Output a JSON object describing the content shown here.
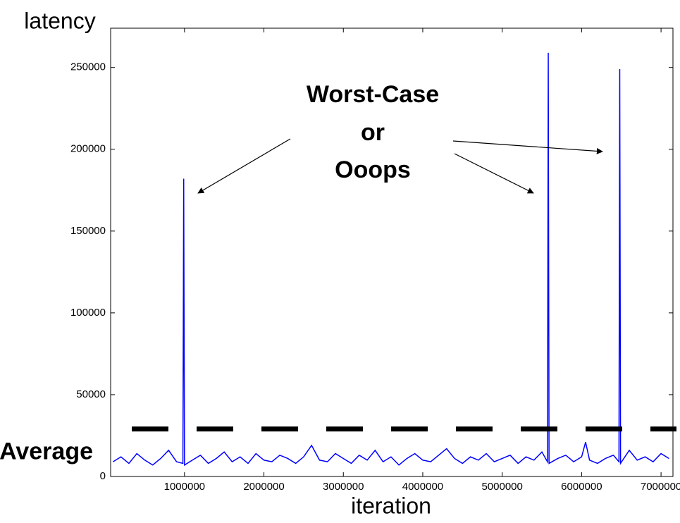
{
  "chart_data": {
    "type": "line",
    "x_label": "iteration",
    "y_label": "latency",
    "color": "#0000ff",
    "xlim": [
      70000,
      7150000
    ],
    "ylim": [
      0,
      274000
    ],
    "xticks": [
      1000000,
      2000000,
      3000000,
      4000000,
      5000000,
      6000000,
      7000000
    ],
    "yticks": [
      0,
      50000,
      100000,
      150000,
      200000,
      250000
    ],
    "grid": false,
    "x": [
      100000,
      200000,
      300000,
      400000,
      500000,
      600000,
      700000,
      800000,
      900000,
      980000,
      990000,
      1000000,
      1100000,
      1200000,
      1300000,
      1400000,
      1500000,
      1600000,
      1700000,
      1800000,
      1900000,
      2000000,
      2100000,
      2200000,
      2300000,
      2400000,
      2500000,
      2600000,
      2700000,
      2800000,
      2900000,
      3000000,
      3100000,
      3200000,
      3300000,
      3400000,
      3500000,
      3600000,
      3700000,
      3800000,
      3900000,
      4000000,
      4100000,
      4200000,
      4300000,
      4400000,
      4500000,
      4600000,
      4700000,
      4800000,
      4900000,
      5000000,
      5100000,
      5200000,
      5300000,
      5400000,
      5500000,
      5570000,
      5580000,
      5590000,
      5700000,
      5800000,
      5900000,
      6000000,
      6050000,
      6100000,
      6200000,
      6300000,
      6400000,
      6470000,
      6480000,
      6490000,
      6600000,
      6700000,
      6800000,
      6900000,
      7000000,
      7100000
    ],
    "values": [
      9000,
      12000,
      8000,
      14000,
      10000,
      7000,
      11000,
      16000,
      9000,
      8000,
      182000,
      7000,
      10000,
      13000,
      8000,
      11000,
      15000,
      9000,
      12000,
      8000,
      14000,
      10000,
      9000,
      13000,
      11000,
      8000,
      12000,
      19000,
      10000,
      9000,
      14000,
      11000,
      8000,
      13000,
      10000,
      16000,
      9000,
      12000,
      7000,
      11000,
      14000,
      10000,
      9000,
      13000,
      17000,
      11000,
      8000,
      12000,
      10000,
      14000,
      9000,
      11000,
      13000,
      8000,
      12000,
      10000,
      15000,
      9000,
      259000,
      8000,
      11000,
      13000,
      9000,
      12000,
      21000,
      10000,
      8000,
      11000,
      13000,
      9000,
      249000,
      8000,
      16000,
      10000,
      12000,
      9000,
      14000,
      11000
    ],
    "reference_line": {
      "value": 29000,
      "label": "Average"
    },
    "annotation_lines": [
      "Worst-Case",
      "or",
      "Ooops"
    ]
  }
}
